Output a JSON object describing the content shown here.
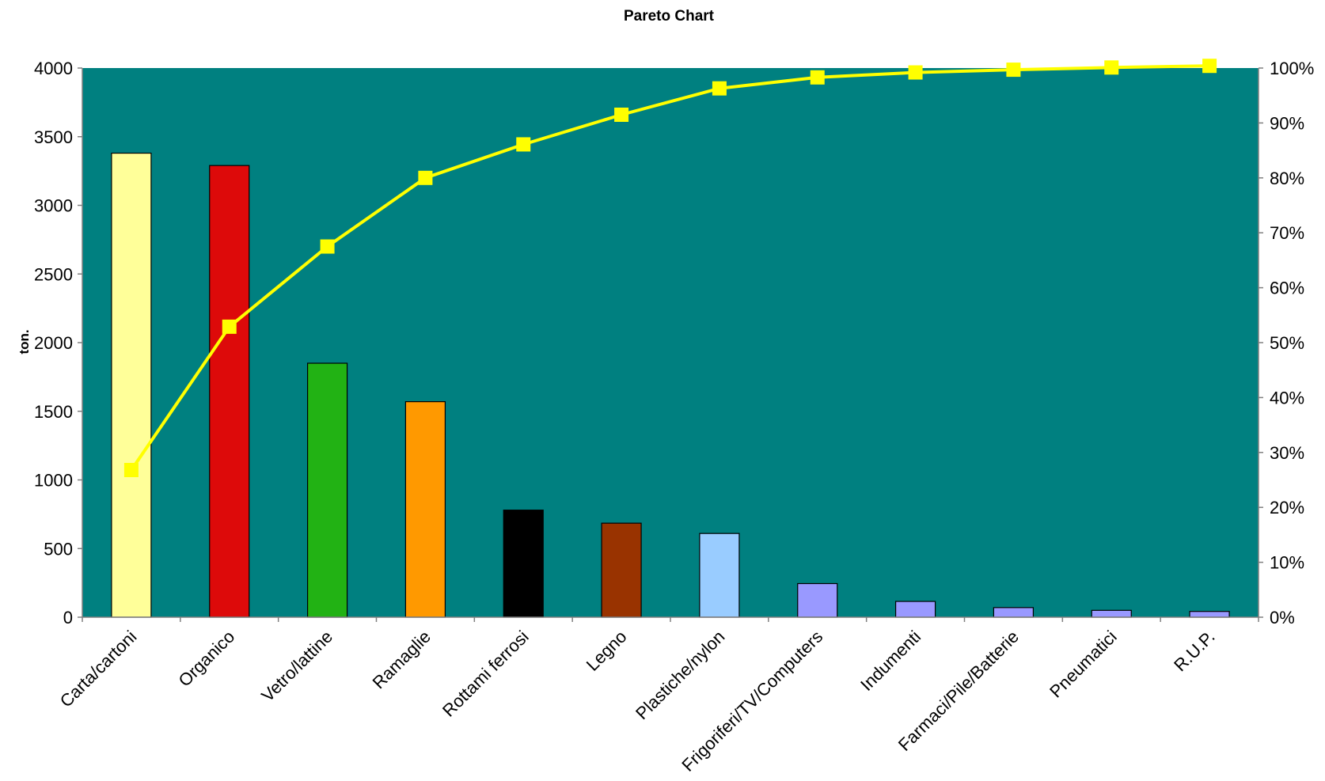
{
  "chart_data": {
    "type": "bar",
    "title": "Pareto Chart",
    "xlabel": "",
    "ylabel": "ton.",
    "y2label": "",
    "ylim": [
      0,
      4000
    ],
    "y2lim": [
      0,
      100
    ],
    "yticks": [
      "0",
      "500",
      "1000",
      "1500",
      "2000",
      "2500",
      "3000",
      "3500",
      "4000"
    ],
    "y2ticks": [
      "0%",
      "10%",
      "20%",
      "30%",
      "40%",
      "50%",
      "60%",
      "70%",
      "80%",
      "90%",
      "100%"
    ],
    "grid": false,
    "legend": "none",
    "plot_background": "#008080",
    "categories": [
      "Carta/cartoni",
      "Organico",
      "Vetro/lattine",
      "Ramaglie",
      "Rottami ferrosi",
      "Legno",
      "Plastiche/nylon",
      "Frigoriferi/TV/Computers",
      "Indumenti",
      "Farmaci/Pile/Batterie",
      "Pneumatici",
      "R.U.P."
    ],
    "series": [
      {
        "type": "bar",
        "axis": "left",
        "values": [
          3380,
          3290,
          1850,
          1570,
          780,
          685,
          610,
          245,
          115,
          70,
          50,
          42
        ],
        "colors": [
          "#FFFF99",
          "#DD0A0A",
          "#22B214",
          "#FF9900",
          "#000000",
          "#993300",
          "#99CCFF",
          "#9999FF",
          "#9999FF",
          "#9999FF",
          "#9999FF",
          "#9999FF"
        ]
      },
      {
        "type": "line",
        "axis": "right",
        "values": [
          26.8,
          52.9,
          67.5,
          80.0,
          86.1,
          91.5,
          96.3,
          98.3,
          99.2,
          99.7,
          100.1,
          100.4
        ],
        "color": "#FFFF00",
        "marker": "square"
      }
    ]
  }
}
